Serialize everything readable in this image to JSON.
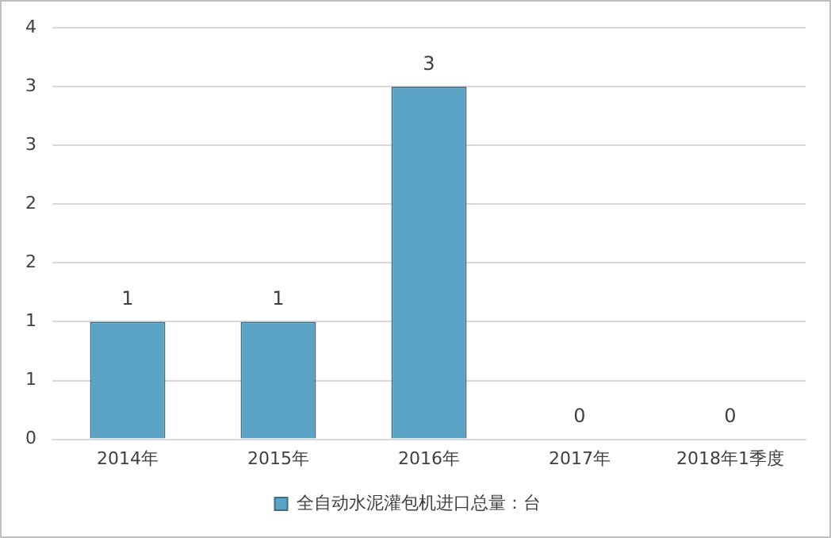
{
  "chart_data": {
    "type": "bar",
    "categories": [
      "2014年",
      "2015年",
      "2016年",
      "2017年",
      "2018年1季度"
    ],
    "series": [
      {
        "name": "全自动水泥灌包机进口总量：台",
        "color": "#5ba3c4",
        "values": [
          1,
          1,
          3,
          0,
          0
        ]
      }
    ],
    "ylim": [
      0,
      3.5
    ],
    "yticks": [
      0,
      {
        "value": 0.5,
        "label": "1"
      },
      1,
      {
        "value": 1.5,
        "label": "2"
      },
      2,
      {
        "value": 2.5,
        "label": "3"
      },
      3,
      {
        "value": 3.5,
        "label": "4"
      }
    ],
    "grid": "y",
    "legend": "bottom",
    "data_labels": true
  }
}
